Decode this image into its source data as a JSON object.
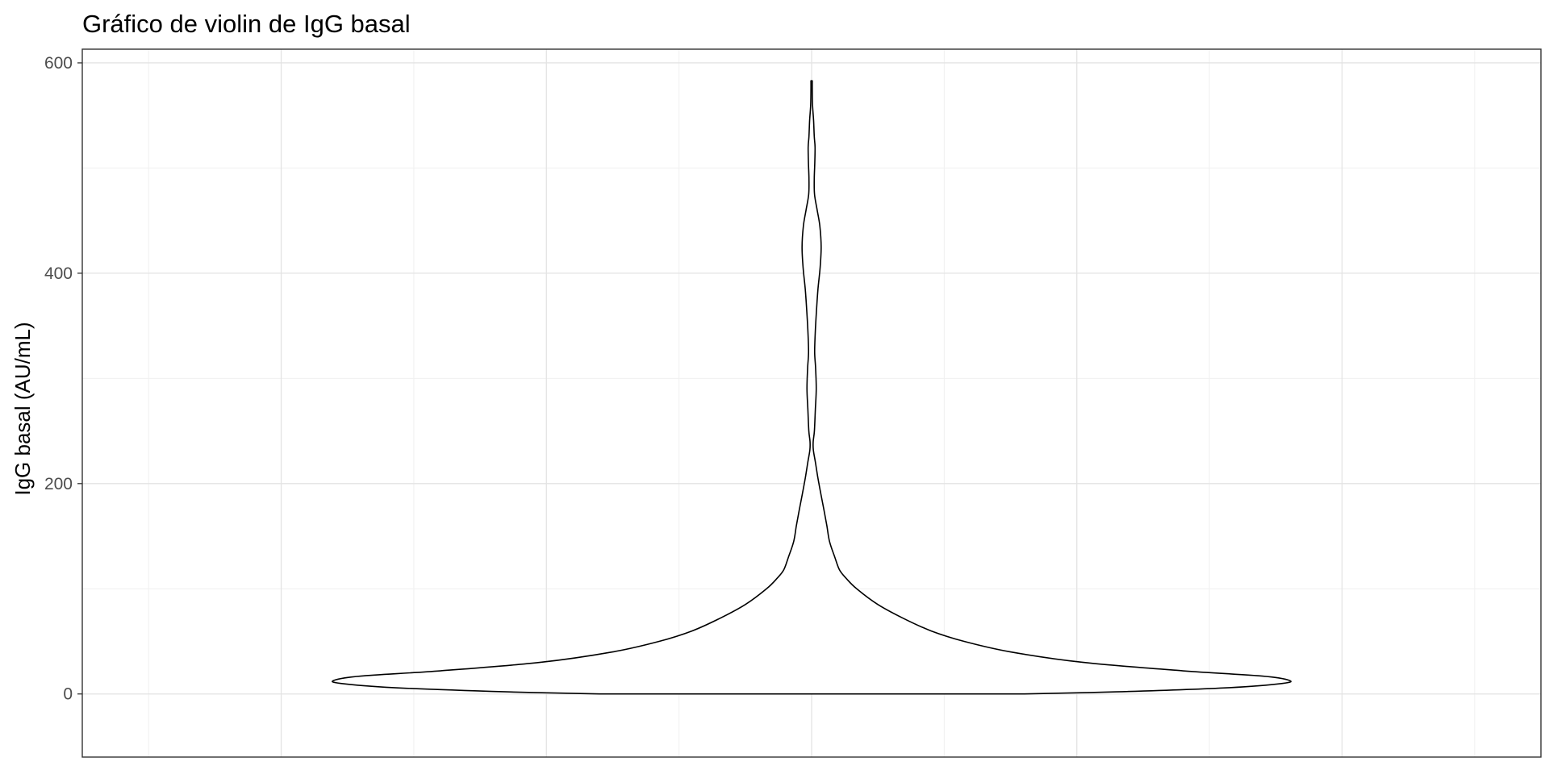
{
  "chart_data": {
    "type": "violin",
    "title": "Gráfico de violin de IgG basal",
    "xlabel": "",
    "ylabel": "IgG basal (AU/mL)",
    "ylim": [
      -60,
      613
    ],
    "yticks": [
      0,
      200,
      400,
      600
    ],
    "y_tick_labels": [
      "0",
      "200",
      "400",
      "600"
    ],
    "xlim": [
      -0.55,
      0.55
    ],
    "x_major_grid": [
      -0.4,
      -0.2,
      0,
      0.2,
      0.4
    ],
    "x_minor_grid": [
      -0.5,
      -0.3,
      -0.1,
      0.1,
      0.3,
      0.5
    ],
    "y_minor_grid": [
      100,
      300,
      500
    ],
    "grid": true,
    "fill_color": "#ffffff",
    "outline_color": "#000000",
    "density_profile": {
      "y": [
        0,
        2,
        6,
        10,
        13,
        17,
        22,
        30,
        40,
        50,
        60,
        72,
        85,
        100,
        110,
        118,
        130,
        145,
        160,
        175,
        190,
        205,
        220,
        232,
        240,
        250,
        270,
        290,
        310,
        325,
        345,
        365,
        385,
        405,
        425,
        445,
        460,
        475,
        490,
        505,
        520,
        530,
        545,
        560,
        575,
        583
      ],
      "half_width": [
        0.16,
        0.23,
        0.315,
        0.355,
        0.36,
        0.34,
        0.28,
        0.205,
        0.15,
        0.115,
        0.09,
        0.069,
        0.05,
        0.034,
        0.026,
        0.021,
        0.0175,
        0.0135,
        0.0115,
        0.0093,
        0.007,
        0.0048,
        0.0029,
        0.0013,
        0.0012,
        0.0021,
        0.0028,
        0.0035,
        0.003,
        0.0023,
        0.0028,
        0.0037,
        0.0048,
        0.0064,
        0.0072,
        0.0062,
        0.0042,
        0.0022,
        0.002,
        0.0024,
        0.0026,
        0.002,
        0.0015,
        0.0007,
        0.0005,
        0.0005
      ]
    }
  }
}
